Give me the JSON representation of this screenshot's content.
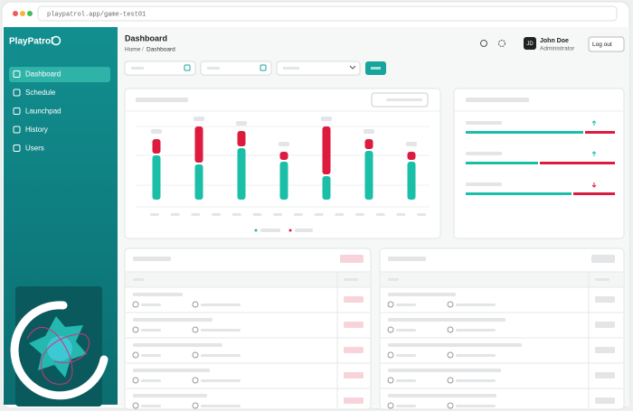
{
  "browser": {
    "url": "playpatrol.app/game-test01"
  },
  "sidebar": {
    "logo": "PlayPatrol",
    "nav": [
      "Dashboard",
      "Schedule",
      "Launchpad",
      "History",
      "Users"
    ]
  },
  "header": {
    "title": "Dashboard",
    "breadcrumb": [
      "Home",
      "Dashboard"
    ],
    "separator": "/",
    "user": {
      "initials": "JD",
      "name": "John Doe",
      "role": "Administrator"
    },
    "logout": "Log out"
  }
}
